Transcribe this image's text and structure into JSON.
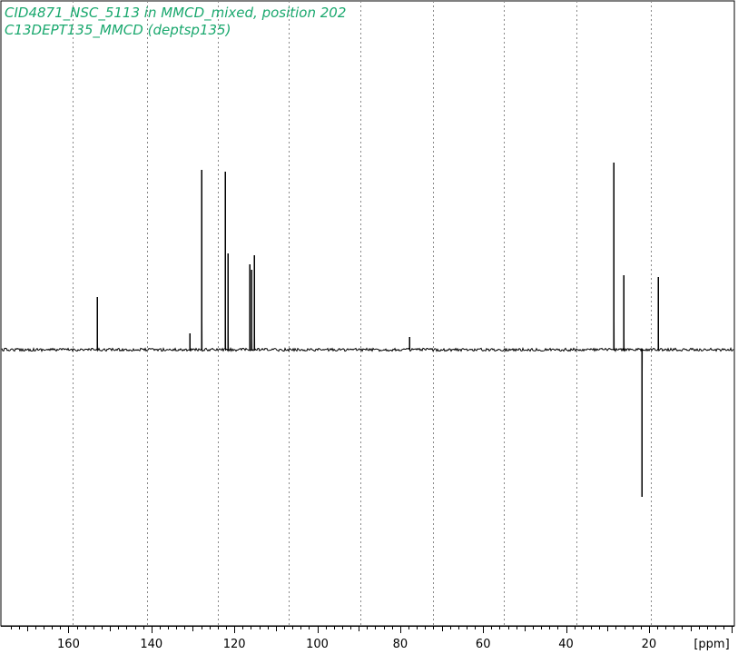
{
  "title_lines": [
    "CID4871_NSC_5113 in MMCD_mixed, position 202",
    "C13DEPT135_MMCD (deptsp135)"
  ],
  "colors": {
    "title": "#1aa86e",
    "spectrum": "#000000",
    "grid": "#888888",
    "frame": "#000000"
  },
  "chart_data": {
    "type": "line",
    "title": "CID4871_NSC_5113 in MMCD_mixed, position 202",
    "subtitle": "C13DEPT135_MMCD (deptsp135)",
    "xlabel": "[ppm]",
    "ylabel": "",
    "xlim": [
      176.3,
      -0.6
    ],
    "x_reversed": true,
    "ylim": [
      -1.25,
      1.0
    ],
    "x_ticks": [
      160,
      140,
      120,
      100,
      80,
      60,
      40,
      20
    ],
    "x_unit_label": "[ppm]",
    "grid_x": [
      159.0,
      141.0,
      124.0,
      107.0,
      89.5,
      72.0,
      55.0,
      37.5,
      19.5
    ],
    "grid": "vertical-dotted",
    "baseline": 0,
    "peaks": [
      {
        "ppm": 153.2,
        "intensity": 0.29
      },
      {
        "ppm": 130.8,
        "intensity": 0.09
      },
      {
        "ppm": 127.9,
        "intensity": 0.99
      },
      {
        "ppm": 122.3,
        "intensity": 0.98
      },
      {
        "ppm": 121.5,
        "intensity": 0.53
      },
      {
        "ppm": 116.3,
        "intensity": 0.47
      },
      {
        "ppm": 115.9,
        "intensity": 0.44
      },
      {
        "ppm": 115.3,
        "intensity": 0.52
      },
      {
        "ppm": 77.8,
        "intensity": 0.07
      },
      {
        "ppm": 28.6,
        "intensity": 1.03
      },
      {
        "ppm": 26.2,
        "intensity": 0.41
      },
      {
        "ppm": 21.7,
        "intensity": -0.81
      },
      {
        "ppm": 17.8,
        "intensity": 0.4
      }
    ]
  }
}
